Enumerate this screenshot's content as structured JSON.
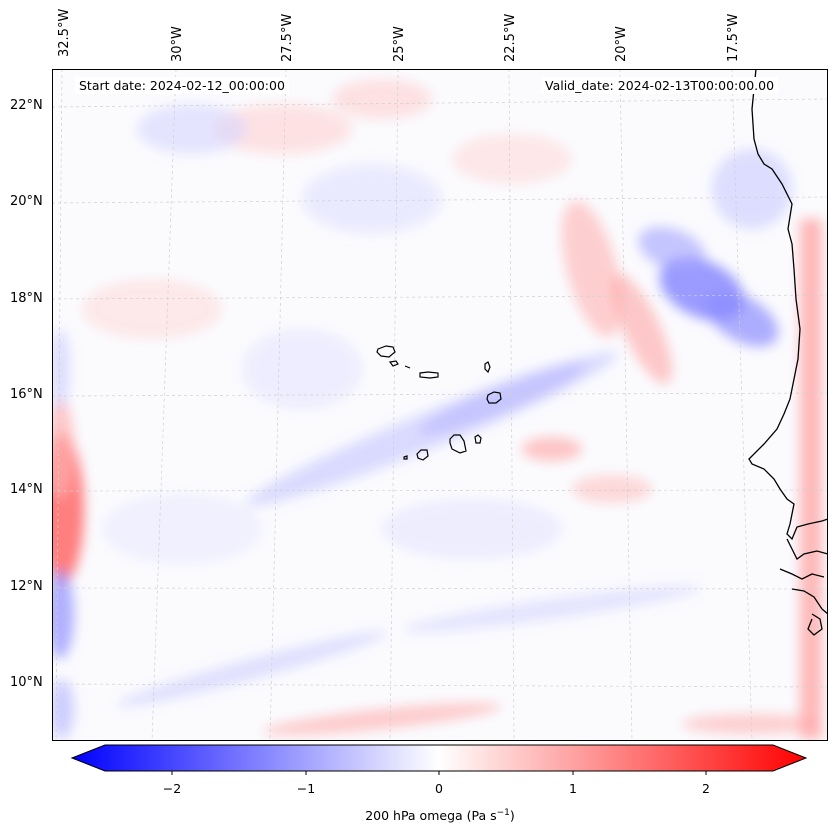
{
  "header": {
    "start_date": "Start date: 2024-02-12_00:00:00",
    "valid_date": "Valid_date: 2024-02-13T00:00:00.00"
  },
  "map": {
    "longitude_labels": [
      "32.5°W",
      "30°W",
      "27.5°W",
      "25°W",
      "22.5°W",
      "20°W",
      "17.5°W"
    ],
    "latitude_labels": [
      "22°N",
      "20°N",
      "18°N",
      "16°N",
      "14°N",
      "12°N",
      "10°N"
    ],
    "field_colors": {
      "negative": "#0000ff",
      "zero": "#ffffff",
      "positive": "#ff0000"
    },
    "coastline_color": "#000000",
    "gridline_color": "#cccccc"
  },
  "colorbar": {
    "ticks": [
      "−2",
      "−1",
      "0",
      "1",
      "2"
    ],
    "label": "200 hPa omega (Pa s",
    "label_exponent": "−1",
    "label_close": ")",
    "range": [
      -2.6,
      2.6
    ],
    "colormap": "bwr"
  }
}
